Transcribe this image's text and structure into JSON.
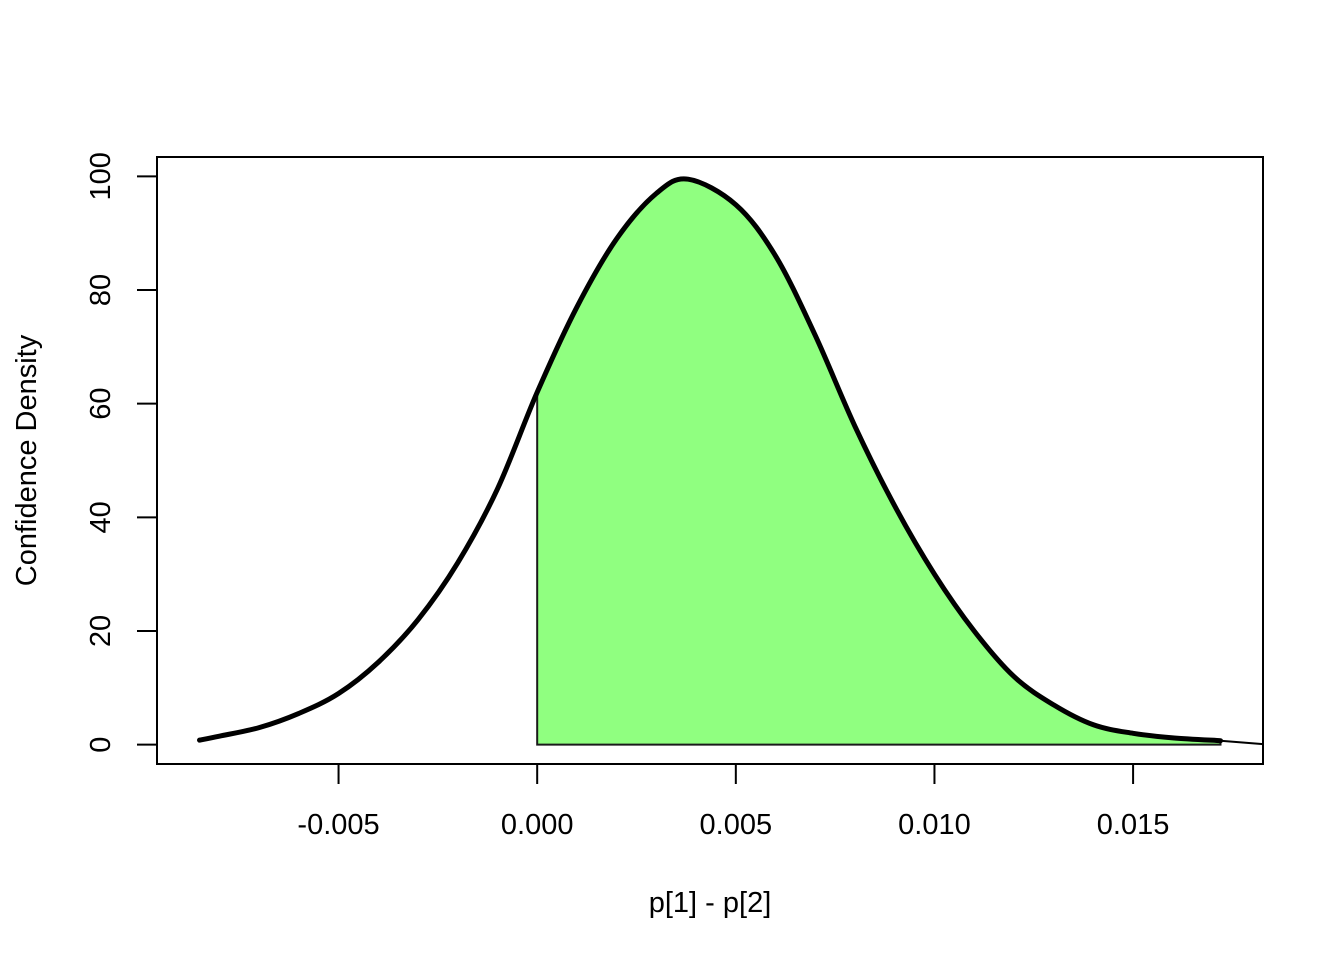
{
  "chart_data": {
    "type": "area",
    "title": "",
    "xlabel": "p[1] - p[2]",
    "ylabel": "Confidence Density",
    "xlim": [
      -0.00957,
      0.01827
    ],
    "ylim": [
      -3.4,
      103.4
    ],
    "x_ticks": [
      -0.005,
      0.0,
      0.005,
      0.01,
      0.015
    ],
    "x_tick_labels": [
      "-0.005",
      "0.000",
      "0.005",
      "0.010",
      "0.015"
    ],
    "y_ticks": [
      0,
      20,
      40,
      60,
      80,
      100
    ],
    "y_tick_labels": [
      "0",
      "20",
      "40",
      "60",
      "80",
      "100"
    ],
    "grid": false,
    "legend": "none",
    "density_curve": {
      "x": [
        -0.0085,
        -0.008,
        -0.007,
        -0.006,
        -0.005,
        -0.004,
        -0.003,
        -0.002,
        -0.001,
        0.0,
        0.001,
        0.002,
        0.003,
        0.0038,
        0.005,
        0.006,
        0.007,
        0.008,
        0.009,
        0.01,
        0.011,
        0.012,
        0.013,
        0.014,
        0.015,
        0.016,
        0.0172
      ],
      "y": [
        0.8,
        1.5,
        3.0,
        5.5,
        9.0,
        14.5,
        22.0,
        32.0,
        45.0,
        62.0,
        77.0,
        89.0,
        97.0,
        99.5,
        95.0,
        86.0,
        72.0,
        56.0,
        42.0,
        30.0,
        20.0,
        12.0,
        7.0,
        3.5,
        2.0,
        1.2,
        0.7
      ]
    },
    "shaded_region": {
      "x_from": 0.0,
      "x_to": 0.0172,
      "color": "#90ff80"
    },
    "colors": {
      "curve": "#000000",
      "fill": "#90ff80",
      "fill_edge": "#1a1a1a",
      "tail_line": "#000000"
    }
  }
}
